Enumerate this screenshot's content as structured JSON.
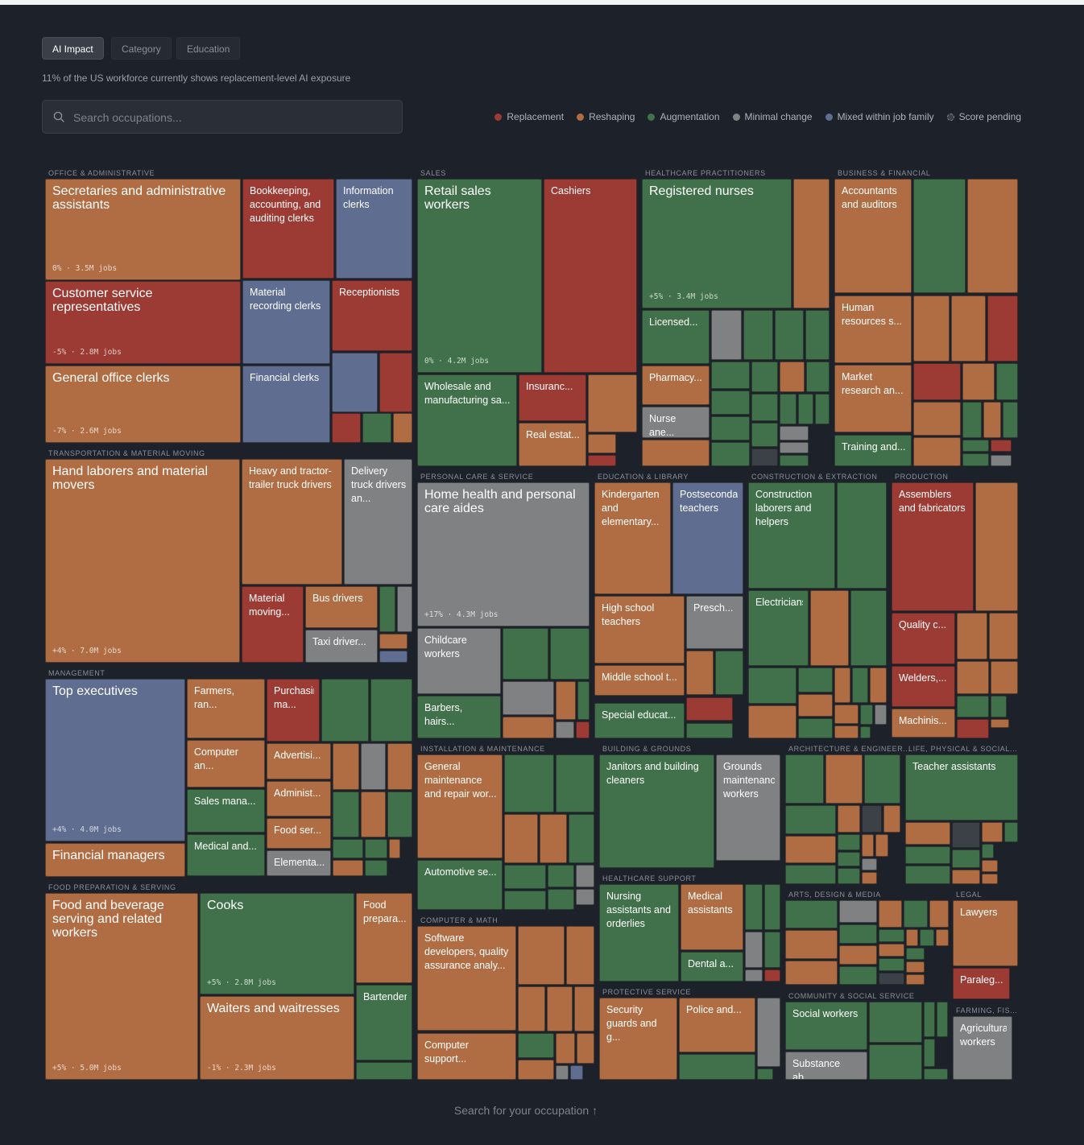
{
  "tabs": [
    {
      "label": "AI Impact",
      "active": true
    },
    {
      "label": "Category",
      "active": false
    },
    {
      "label": "Education",
      "active": false
    }
  ],
  "subtitle": "11% of the US workforce currently shows replacement-level AI exposure",
  "search": {
    "placeholder": "Search occupations..."
  },
  "colors": {
    "replacement": "#9c3a34",
    "reshaping": "#b06d43",
    "augmentation": "#40714a",
    "minimal": "#7f8183",
    "mixed": "#5f6d91",
    "pending": "#3c4047"
  },
  "legend": [
    {
      "key": "replacement",
      "label": "Replacement"
    },
    {
      "key": "reshaping",
      "label": "Reshaping"
    },
    {
      "key": "augmentation",
      "label": "Augmentation"
    },
    {
      "key": "minimal",
      "label": "Minimal change"
    },
    {
      "key": "mixed",
      "label": "Mixed within job family"
    },
    {
      "key": "pending",
      "label": "Score pending"
    }
  ],
  "footer": "Search for your occupation ↑",
  "chart_data": {
    "type": "treemap",
    "groups": [
      {
        "name": "OFFICE & ADMINISTRATIVE",
        "occupations": [
          {
            "label": "Secretaries and administrative assistants",
            "c": "reshaping",
            "meta": "0% · 3.5M jobs"
          },
          {
            "label": "Bookkeeping, accounting, and auditing clerks",
            "c": "replacement"
          },
          {
            "label": "Information clerks",
            "c": "mixed"
          },
          {
            "label": "Customer service representatives",
            "c": "replacement",
            "meta": "-5% · 2.8M jobs"
          },
          {
            "label": "Material recording clerks",
            "c": "mixed"
          },
          {
            "label": "Receptionists",
            "c": "replacement"
          },
          {
            "label": "General office clerks",
            "c": "reshaping",
            "meta": "-7% · 2.6M jobs"
          },
          {
            "label": "Financial clerks",
            "c": "mixed"
          }
        ]
      },
      {
        "name": "TRANSPORTATION & MATERIAL MOVING",
        "occupations": [
          {
            "label": "Hand laborers and material movers",
            "c": "reshaping",
            "meta": "+4% · 7.0M jobs"
          },
          {
            "label": "Heavy and tractor-trailer truck drivers",
            "c": "reshaping"
          },
          {
            "label": "Delivery truck drivers an...",
            "c": "minimal"
          },
          {
            "label": "Material moving...",
            "c": "replacement"
          },
          {
            "label": "Bus drivers",
            "c": "reshaping"
          },
          {
            "label": "Taxi driver...",
            "c": "minimal"
          }
        ]
      },
      {
        "name": "MANAGEMENT",
        "occupations": [
          {
            "label": "Top executives",
            "c": "mixed",
            "meta": "+4% · 4.0M jobs"
          },
          {
            "label": "Farmers, ran...",
            "c": "reshaping"
          },
          {
            "label": "Purchasing ma...",
            "c": "replacement"
          },
          {
            "label": "Computer an...",
            "c": "reshaping"
          },
          {
            "label": "Advertisi...",
            "c": "reshaping"
          },
          {
            "label": "Sales mana...",
            "c": "augmentation"
          },
          {
            "label": "Administ...",
            "c": "reshaping"
          },
          {
            "label": "Food ser...",
            "c": "reshaping"
          },
          {
            "label": "Medical and...",
            "c": "augmentation"
          },
          {
            "label": "Elementa...",
            "c": "minimal"
          },
          {
            "label": "Financial managers",
            "c": "reshaping"
          }
        ]
      },
      {
        "name": "FOOD PREPARATION & SERVING",
        "occupations": [
          {
            "label": "Food and beverage serving and related workers",
            "c": "reshaping",
            "meta": "+5% · 5.0M jobs"
          },
          {
            "label": "Cooks",
            "c": "augmentation",
            "meta": "+5% · 2.8M jobs"
          },
          {
            "label": "Food prepara...",
            "c": "reshaping"
          },
          {
            "label": "Waiters and waitresses",
            "c": "reshaping",
            "meta": "-1% · 2.3M jobs"
          },
          {
            "label": "Bartenders",
            "c": "augmentation"
          }
        ]
      },
      {
        "name": "SALES",
        "occupations": [
          {
            "label": "Retail sales workers",
            "c": "augmentation",
            "meta": "0% · 4.2M jobs"
          },
          {
            "label": "Cashiers",
            "c": "replacement"
          },
          {
            "label": "Wholesale and manufacturing sa...",
            "c": "augmentation"
          },
          {
            "label": "Insuranc...",
            "c": "replacement"
          },
          {
            "label": "Real estat...",
            "c": "reshaping"
          }
        ]
      },
      {
        "name": "HEALTHCARE PRACTITIONERS",
        "occupations": [
          {
            "label": "Registered nurses",
            "c": "augmentation",
            "meta": "+5% · 3.4M jobs"
          },
          {
            "label": "Licensed...",
            "c": "augmentation"
          },
          {
            "label": "Pharmacy...",
            "c": "reshaping"
          },
          {
            "label": "Nurse ane...",
            "c": "minimal"
          }
        ]
      },
      {
        "name": "BUSINESS & FINANCIAL",
        "occupations": [
          {
            "label": "Accountants and auditors",
            "c": "reshaping"
          },
          {
            "label": "Human resources s...",
            "c": "reshaping"
          },
          {
            "label": "Market research an...",
            "c": "reshaping"
          },
          {
            "label": "Training and...",
            "c": "augmentation"
          }
        ]
      },
      {
        "name": "PERSONAL CARE & SERVICE",
        "occupations": [
          {
            "label": "Home health and personal care aides",
            "c": "minimal",
            "meta": "+17% · 4.3M jobs"
          },
          {
            "label": "Childcare workers",
            "c": "minimal"
          },
          {
            "label": "Barbers, hairs...",
            "c": "augmentation"
          }
        ]
      },
      {
        "name": "EDUCATION & LIBRARY",
        "occupations": [
          {
            "label": "Kindergarten and elementary...",
            "c": "reshaping"
          },
          {
            "label": "Postsecondary teachers",
            "c": "mixed"
          },
          {
            "label": "High school teachers",
            "c": "reshaping"
          },
          {
            "label": "Presch...",
            "c": "minimal"
          },
          {
            "label": "Middle school t...",
            "c": "reshaping"
          },
          {
            "label": "Special educat...",
            "c": "augmentation"
          }
        ]
      },
      {
        "name": "CONSTRUCTION & EXTRACTION",
        "occupations": [
          {
            "label": "Construction laborers and helpers",
            "c": "augmentation"
          },
          {
            "label": "Electricians",
            "c": "augmentation"
          }
        ]
      },
      {
        "name": "PRODUCTION",
        "occupations": [
          {
            "label": "Assemblers and fabricators",
            "c": "replacement"
          },
          {
            "label": "Quality c...",
            "c": "replacement"
          },
          {
            "label": "Welders,...",
            "c": "replacement"
          },
          {
            "label": "Machinis...",
            "c": "reshaping"
          }
        ]
      },
      {
        "name": "INSTALLATION & MAINTENANCE",
        "occupations": [
          {
            "label": "General maintenance and repair wor...",
            "c": "reshaping"
          },
          {
            "label": "Automotive se...",
            "c": "augmentation"
          }
        ]
      },
      {
        "name": "BUILDING & GROUNDS",
        "occupations": [
          {
            "label": "Janitors and building cleaners",
            "c": "augmentation"
          },
          {
            "label": "Grounds maintenance workers",
            "c": "minimal"
          }
        ]
      },
      {
        "name": "ARCHITECTURE & ENGINEER...",
        "occupations": []
      },
      {
        "name": "LIFE, PHYSICAL & SOCIAL...",
        "occupations": [
          {
            "label": "Teacher assistants",
            "c": "augmentation"
          }
        ]
      },
      {
        "name": "COMPUTER & MATH",
        "occupations": [
          {
            "label": "Software developers, quality assurance analy...",
            "c": "reshaping"
          },
          {
            "label": "Computer support...",
            "c": "reshaping"
          }
        ]
      },
      {
        "name": "HEALTHCARE SUPPORT",
        "occupations": [
          {
            "label": "Nursing assistants and orderlies",
            "c": "augmentation"
          },
          {
            "label": "Medical assistants",
            "c": "reshaping"
          },
          {
            "label": "Dental a...",
            "c": "augmentation"
          }
        ]
      },
      {
        "name": "ARTS, DESIGN & MEDIA",
        "occupations": []
      },
      {
        "name": "LEGAL",
        "occupations": [
          {
            "label": "Lawyers",
            "c": "reshaping"
          },
          {
            "label": "Paraleg...",
            "c": "replacement"
          }
        ]
      },
      {
        "name": "PROTECTIVE SERVICE",
        "occupations": [
          {
            "label": "Security guards and g...",
            "c": "reshaping"
          },
          {
            "label": "Police and...",
            "c": "reshaping"
          }
        ]
      },
      {
        "name": "COMMUNITY & SOCIAL SERVICE",
        "occupations": [
          {
            "label": "Social workers",
            "c": "augmentation"
          },
          {
            "label": "Substance ab...",
            "c": "minimal"
          }
        ]
      },
      {
        "name": "FARMING, FIS...",
        "occupations": [
          {
            "label": "Agricultural workers",
            "c": "minimal"
          }
        ]
      }
    ]
  }
}
